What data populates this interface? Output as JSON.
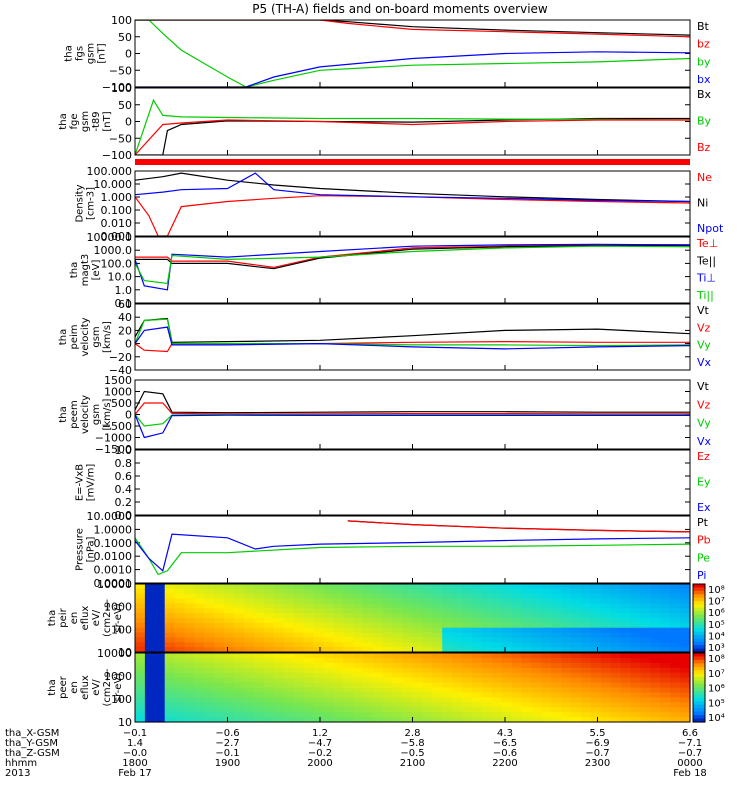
{
  "chart_data": {
    "type": "line",
    "title": "P5 (TH-A) fields and on-board moments overview",
    "panels": [
      {
        "id": "fgs",
        "ylabel": [
          "tha",
          "fgs",
          "gsm",
          "[nT]"
        ],
        "yticks": [
          "100",
          "50",
          "0",
          "−50",
          "−100"
        ],
        "ylim": [
          -100,
          100
        ],
        "series": [
          {
            "name": "Bt",
            "color": "#000000",
            "x": [
              1800,
              1830,
              1850,
              1900,
              1950,
              2000,
              2030,
              2100,
              2200,
              2300,
              2400
            ],
            "y": [
              100,
              100,
              100,
              100,
              100,
              100,
              95,
              80,
              70,
              62,
              55
            ]
          },
          {
            "name": "bz",
            "color": "#ff0000",
            "x": [
              1800,
              1830,
              1850,
              1900,
              1950,
              2000,
              2030,
              2100,
              2200,
              2300,
              2400
            ],
            "y": [
              100,
              100,
              100,
              100,
              100,
              100,
              90,
              72,
              65,
              58,
              50
            ]
          },
          {
            "name": "by",
            "color": "#00cc00",
            "x": [
              1800,
              1815,
              1830,
              1850,
              1900,
              1920,
              1950,
              2000,
              2100,
              2200,
              2300,
              2400
            ],
            "y": [
              100,
              100,
              60,
              10,
              -70,
              -100,
              -80,
              -50,
              -35,
              -30,
              -25,
              -15
            ]
          },
          {
            "name": "bx",
            "color": "#0000ff",
            "x": [
              1800,
              1830,
              1850,
              1900,
              1920,
              1950,
              2000,
              2100,
              2200,
              2300,
              2400
            ],
            "y": [
              -100,
              -100,
              -100,
              -100,
              -100,
              -70,
              -40,
              -15,
              0,
              5,
              2
            ]
          }
        ]
      },
      {
        "id": "fge",
        "ylabel": [
          "tha",
          "fge",
          "gsm",
          "-t89",
          "[nT]"
        ],
        "yticks": [
          "100",
          "50",
          "0",
          "−50",
          "−100"
        ],
        "ylim": [
          -120,
          100
        ],
        "series": [
          {
            "name": "Bx",
            "color": "#000000",
            "x": [
              1800,
              1830,
              1835,
              1850,
              1900,
              2000,
              2100,
              2200,
              2300,
              2400
            ],
            "y": [
              -120,
              -120,
              -40,
              -20,
              -8,
              -10,
              -12,
              -5,
              0,
              0
            ]
          },
          {
            "name": "By",
            "color": "#00cc00",
            "x": [
              1800,
              1820,
              1830,
              1850,
              1900,
              2000,
              2100,
              2200,
              2300,
              2400
            ],
            "y": [
              -120,
              60,
              10,
              5,
              3,
              0,
              0,
              -2,
              -3,
              -5
            ]
          },
          {
            "name": "Bz",
            "color": "#ff0000",
            "x": [
              1800,
              1830,
              1850,
              1900,
              2000,
              2100,
              2200,
              2300,
              2400
            ],
            "y": [
              -120,
              -20,
              -15,
              -5,
              -10,
              -20,
              -10,
              -5,
              -5
            ]
          }
        ]
      },
      {
        "id": "density",
        "ylabel": [
          "Density",
          "[cm-3]"
        ],
        "yticks": [
          "100.000",
          "10.000",
          "1.000",
          "0.100",
          "0.010",
          "0.001"
        ],
        "ylim": [
          0.001,
          300
        ],
        "log": true,
        "series": [
          {
            "name": "Ne",
            "color": "#ff0000",
            "x": [
              1800,
              1815,
              1825,
              1835,
              1850,
              1900,
              1950,
              2000,
              2100,
              2200,
              2300,
              2400
            ],
            "y": [
              2,
              0.05,
              0.001,
              0.001,
              0.3,
              0.8,
              1.5,
              2.5,
              2,
              1.2,
              0.8,
              0.6
            ]
          },
          {
            "name": "Ni",
            "color": "#000000",
            "x": [
              1800,
              1830,
              1850,
              1900,
              1950,
              2000,
              2100,
              2200,
              2300,
              2400
            ],
            "y": [
              50,
              100,
              200,
              50,
              20,
              10,
              4,
              2,
              1.2,
              0.8
            ]
          },
          {
            "name": "Npot",
            "color": "#0000ff",
            "x": [
              1800,
              1830,
              1850,
              1900,
              1930,
              1950,
              2000,
              2100,
              2200,
              2300,
              2400
            ],
            "y": [
              3,
              5,
              8,
              10,
              200,
              8,
              3,
              2,
              1.5,
              1,
              0.8
            ]
          }
        ]
      },
      {
        "id": "temp",
        "ylabel": [
          "tha",
          "magt3",
          "[eV]"
        ],
        "yticks": [
          "10000.0",
          "1000.0",
          "100.0",
          "10.0",
          "1.0",
          "0.1"
        ],
        "ylim": [
          0.1,
          10000
        ],
        "log": true,
        "series": [
          {
            "name": "Te⊥",
            "color": "#ff0000",
            "x": [
              1800,
              1810,
              1835,
              1840,
              1900,
              1950,
              2000,
              2100,
              2200,
              2300,
              2400
            ],
            "y": [
              300,
              300,
              300,
              150,
              150,
              50,
              300,
              1500,
              2000,
              2500,
              2500
            ]
          },
          {
            "name": "Te||",
            "color": "#000000",
            "x": [
              1800,
              1810,
              1835,
              1840,
              1900,
              1950,
              2000,
              2100,
              2200,
              2300,
              2400
            ],
            "y": [
              200,
              200,
              200,
              100,
              100,
              40,
              250,
              1200,
              1800,
              2200,
              2200
            ]
          },
          {
            "name": "Ti⊥",
            "color": "#0000ff",
            "x": [
              1800,
              1810,
              1835,
              1840,
              1900,
              2000,
              2100,
              2200,
              2300,
              2400
            ],
            "y": [
              200,
              2,
              1,
              500,
              300,
              800,
              2000,
              2500,
              2800,
              2500
            ]
          },
          {
            "name": "Ti||",
            "color": "#00cc00",
            "x": [
              1800,
              1810,
              1835,
              1840,
              1900,
              2000,
              2100,
              2200,
              2300,
              2400
            ],
            "y": [
              100,
              5,
              3,
              400,
              200,
              300,
              800,
              1500,
              2000,
              1800
            ]
          }
        ]
      },
      {
        "id": "peim",
        "ylabel": [
          "tha",
          "peim",
          "velocity",
          "gsm",
          "[km/s]"
        ],
        "yticks": [
          "60",
          "40",
          "20",
          "0",
          "−20",
          "−40"
        ],
        "ylim": [
          -40,
          60
        ],
        "series": [
          {
            "name": "Vt",
            "color": "#000000",
            "x": [
              1800,
              1810,
              1835,
              1840,
              1900,
              2000,
              2100,
              2200,
              2300,
              2400
            ],
            "y": [
              10,
              35,
              38,
              2,
              3,
              5,
              12,
              20,
              22,
              15
            ]
          },
          {
            "name": "Vz",
            "color": "#ff0000",
            "x": [
              1800,
              1810,
              1835,
              1840,
              1900,
              2000,
              2100,
              2200,
              2300,
              2400
            ],
            "y": [
              0,
              -10,
              -12,
              0,
              0,
              0,
              2,
              3,
              2,
              2
            ]
          },
          {
            "name": "Vy",
            "color": "#00cc00",
            "x": [
              1800,
              1810,
              1835,
              1840,
              1900,
              2000,
              2100,
              2200,
              2300,
              2400
            ],
            "y": [
              0,
              35,
              37,
              0,
              0,
              0,
              -2,
              -2,
              -3,
              -2
            ]
          },
          {
            "name": "Vx",
            "color": "#0000ff",
            "x": [
              1800,
              1810,
              1835,
              1840,
              1900,
              2000,
              2100,
              2200,
              2300,
              2400
            ],
            "y": [
              0,
              20,
              25,
              -2,
              -2,
              0,
              -5,
              -8,
              -5,
              -3
            ]
          }
        ]
      },
      {
        "id": "peem",
        "ylabel": [
          "tha",
          "peem",
          "velocity",
          "gsm",
          "[km/s]"
        ],
        "yticks": [
          "1500",
          "1000",
          "500",
          "0",
          "−500",
          "−1000",
          "−1500"
        ],
        "ylim": [
          -1500,
          1500
        ],
        "series": [
          {
            "name": "Vt",
            "color": "#000000",
            "x": [
              1800,
              1810,
              1830,
              1840,
              1900,
              2000,
              2100,
              2200,
              2300,
              2400
            ],
            "y": [
              200,
              1000,
              900,
              100,
              80,
              100,
              120,
              120,
              100,
              100
            ]
          },
          {
            "name": "Vz",
            "color": "#ff0000",
            "x": [
              1800,
              1810,
              1830,
              1840,
              1900,
              2000,
              2100,
              2200,
              2300,
              2400
            ],
            "y": [
              0,
              500,
              500,
              50,
              20,
              30,
              40,
              40,
              30,
              30
            ]
          },
          {
            "name": "Vy",
            "color": "#00cc00",
            "x": [
              1800,
              1810,
              1830,
              1840,
              1900,
              2000,
              2100,
              2200,
              2300,
              2400
            ],
            "y": [
              0,
              -500,
              -400,
              -20,
              -10,
              -20,
              -20,
              -20,
              -20,
              -20
            ]
          },
          {
            "name": "Vx",
            "color": "#0000ff",
            "x": [
              1800,
              1810,
              1830,
              1840,
              1900,
              2000,
              2100,
              2200,
              2300,
              2400
            ],
            "y": [
              0,
              -1000,
              -800,
              -50,
              -30,
              -40,
              -40,
              -40,
              -40,
              -40
            ]
          }
        ]
      },
      {
        "id": "efield",
        "ylabel": [
          "E=-VxB",
          "[mV/m]"
        ],
        "yticks": [
          "1.0",
          "0.8",
          "0.6",
          "0.4",
          "0.2",
          "0.0"
        ],
        "ylim": [
          0,
          1
        ],
        "series": [
          {
            "name": "Ez",
            "color": "#ff0000",
            "x": [],
            "y": []
          },
          {
            "name": "Ey",
            "color": "#00cc00",
            "x": [],
            "y": []
          },
          {
            "name": "Ex",
            "color": "#0000ff",
            "x": [],
            "y": []
          }
        ]
      },
      {
        "id": "pressure",
        "ylabel": [
          "Pressure",
          "[nPa]"
        ],
        "yticks": [
          "10.0000",
          "1.0000",
          "0.1000",
          "0.0100",
          "0.0010",
          "0.0001"
        ],
        "ylim": [
          0.0001,
          30
        ],
        "log": true,
        "series": [
          {
            "name": "Pt",
            "color": "#000000",
            "x": [
              2030,
              2100,
              2200,
              2300,
              2400
            ],
            "y": [
              12,
              6,
              3,
              2,
              1.5
            ]
          },
          {
            "name": "Pb",
            "color": "#ff0000",
            "x": [
              2030,
              2100,
              2200,
              2300,
              2400
            ],
            "y": [
              12,
              6,
              3,
              2,
              1.5
            ]
          },
          {
            "name": "Pe",
            "color": "#00cc00",
            "x": [
              1800,
              1815,
              1825,
              1835,
              1850,
              1900,
              2000,
              2100,
              2200,
              2300,
              2400
            ],
            "y": [
              0.5,
              0.01,
              0.0005,
              0.001,
              0.03,
              0.03,
              0.08,
              0.1,
              0.1,
              0.12,
              0.15
            ]
          },
          {
            "name": "Pi",
            "color": "#0000ff",
            "x": [
              1800,
              1815,
              1830,
              1840,
              1900,
              1930,
              1950,
              2000,
              2100,
              2200,
              2300,
              2400
            ],
            "y": [
              0.3,
              0.01,
              0.001,
              1,
              0.5,
              0.06,
              0.1,
              0.15,
              0.2,
              0.3,
              0.4,
              0.5
            ]
          }
        ]
      },
      {
        "id": "peir",
        "type": "heatmap",
        "ylabel": [
          "tha",
          "peir",
          "en",
          "eflux",
          "eV/",
          "(cm2-s-",
          "sr-eV)"
        ],
        "yticks": [
          "10000",
          "1000",
          "100",
          "10"
        ],
        "colorbar_ticks": [
          "10⁸",
          "10⁷",
          "10⁶",
          "10⁵",
          "10⁴",
          "10³"
        ]
      },
      {
        "id": "peer",
        "type": "heatmap",
        "ylabel": [
          "tha",
          "peer",
          "en",
          "eflux",
          "eV/",
          "(cm2-s-",
          "sr-eV)"
        ],
        "yticks": [
          "10000",
          "1000",
          "100",
          "10"
        ],
        "colorbar_ticks": [
          "10⁸",
          "10⁷",
          "10⁶",
          "10⁵",
          "10⁴"
        ]
      }
    ],
    "xrange": [
      1800,
      2400
    ],
    "xticks": [
      1800,
      1900,
      2000,
      2100,
      2200,
      2300,
      2400
    ],
    "xaxis_rows": [
      {
        "label": "tha_X-GSM",
        "values": [
          "−0.1",
          "−0.6",
          "1.2",
          "2.8",
          "4.3",
          "5.5",
          "6.6"
        ]
      },
      {
        "label": "tha_Y-GSM",
        "values": [
          "1.4",
          "−2.7",
          "−4.7",
          "−5.8",
          "−6.5",
          "−6.9",
          "−7.1"
        ]
      },
      {
        "label": "tha_Z-GSM",
        "values": [
          "−0.0",
          "−0.1",
          "−0.2",
          "−0.5",
          "−0.6",
          "−0.7",
          "−0.7"
        ]
      },
      {
        "label": "hhmm",
        "values": [
          "1800",
          "1900",
          "2000",
          "2100",
          "2200",
          "2300",
          "0000"
        ]
      }
    ],
    "year": "2013",
    "date_start": "Feb 17",
    "date_end": "Feb 18"
  }
}
